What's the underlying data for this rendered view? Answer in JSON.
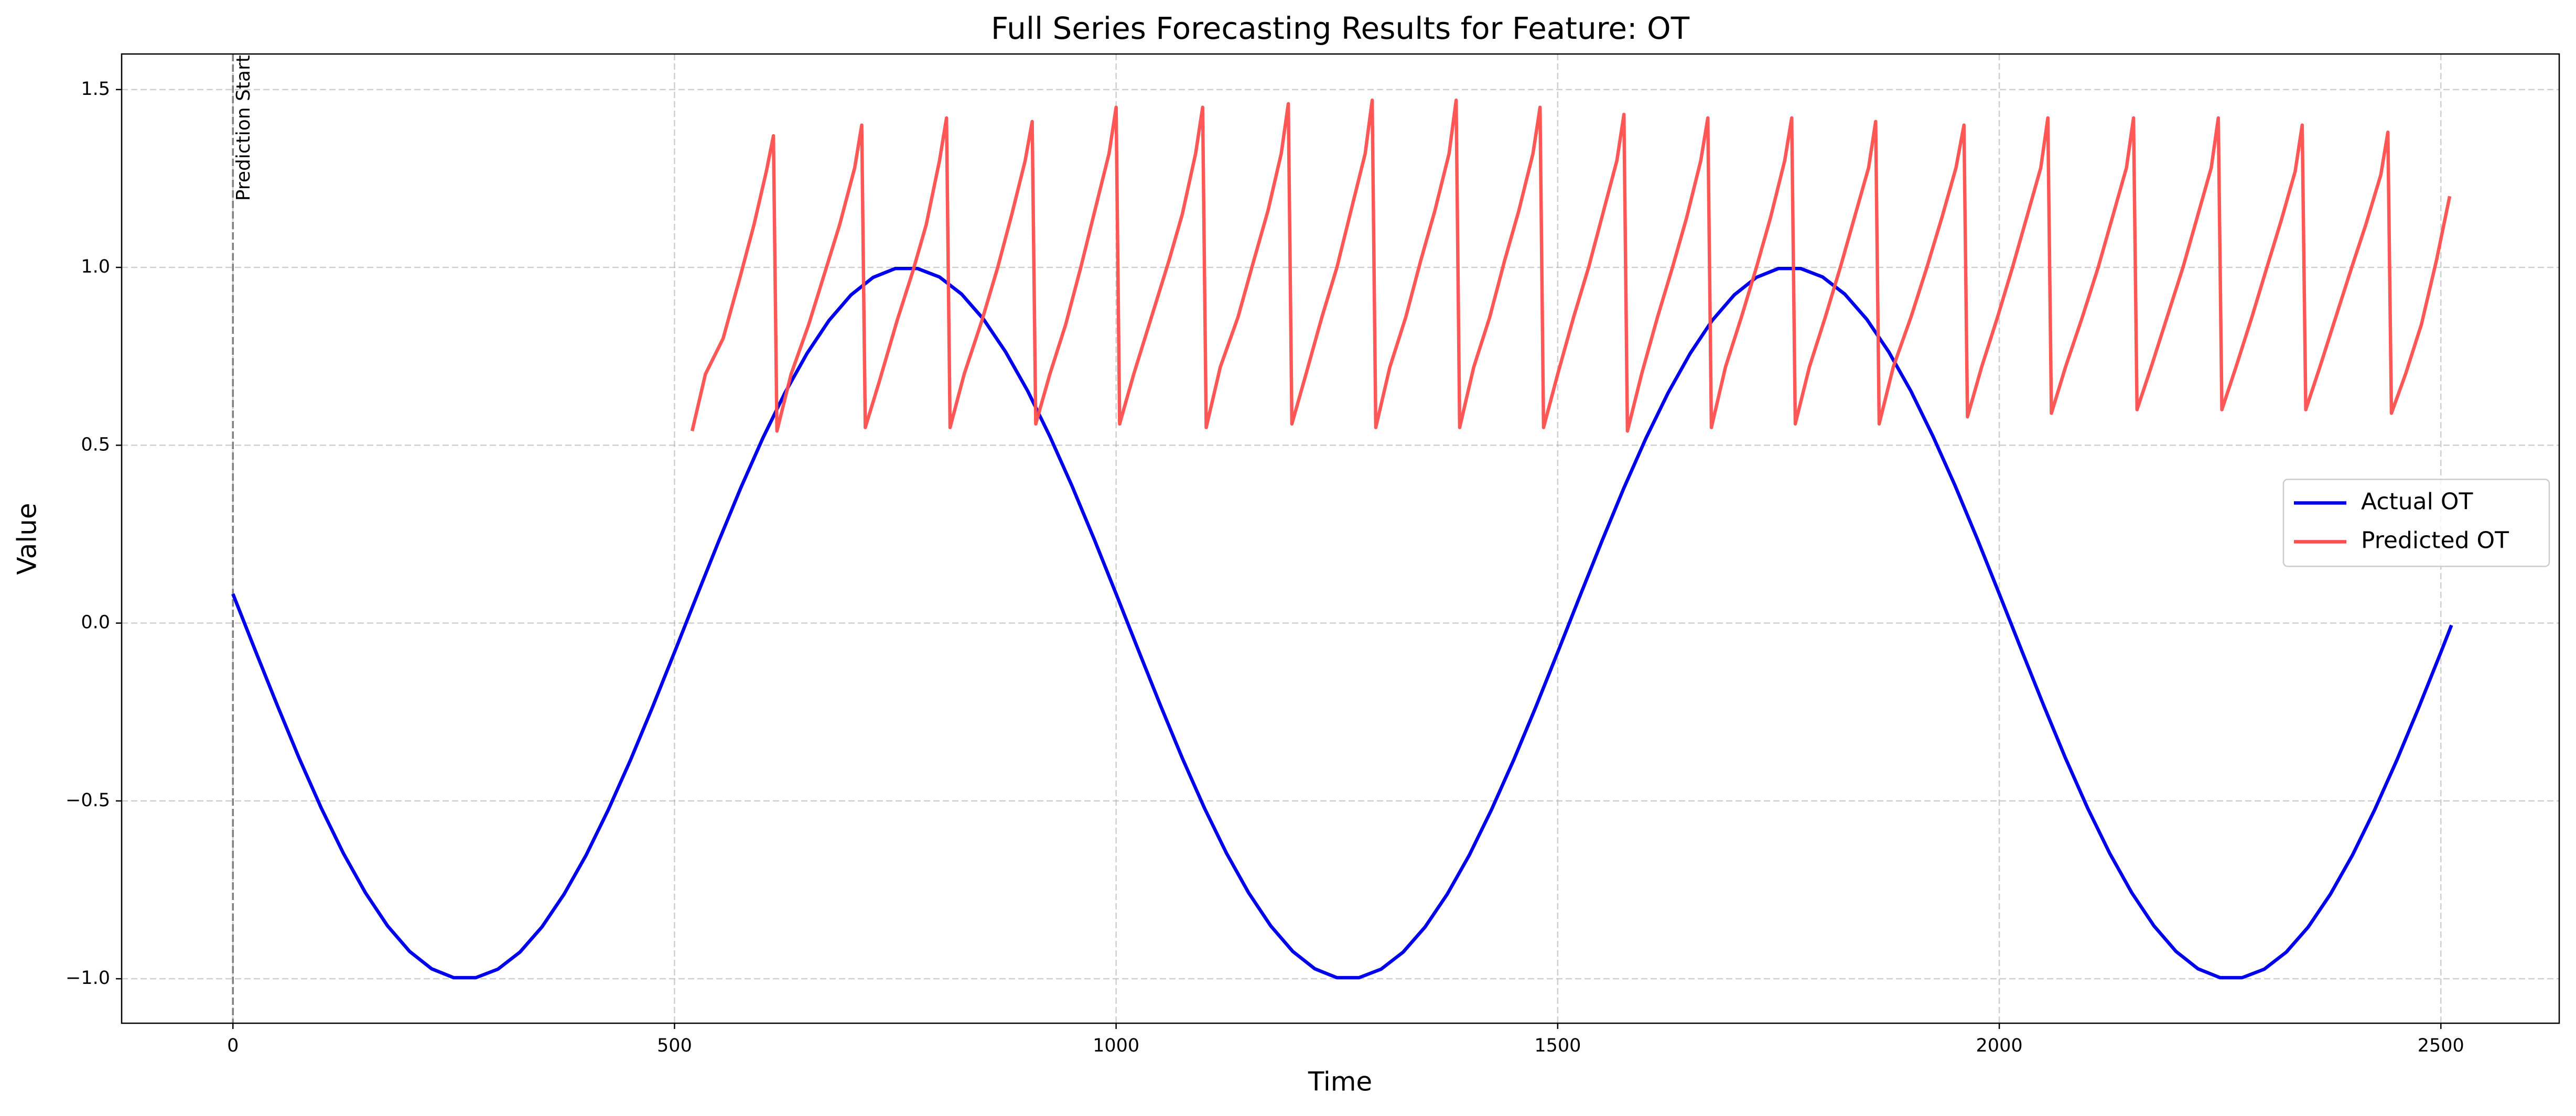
{
  "chart_data": {
    "type": "line",
    "title": "Full Series Forecasting Results for Feature: OT",
    "xlabel": "Time",
    "ylabel": "Value",
    "xlim": [
      -126,
      2634
    ],
    "ylim": [
      -1.125,
      1.6
    ],
    "xticks": [
      0,
      500,
      1000,
      1500,
      2000,
      2500
    ],
    "yticks": [
      {
        "value": -1.0,
        "label": "−1.0"
      },
      {
        "value": -0.5,
        "label": "−0.5"
      },
      {
        "value": 0.0,
        "label": "0.0"
      },
      {
        "value": 0.5,
        "label": "0.5"
      },
      {
        "value": 1.0,
        "label": "1.0"
      },
      {
        "value": 1.5,
        "label": "1.5"
      }
    ],
    "grid": true,
    "legend": "center right",
    "vline": {
      "x": 0,
      "label": "Prediction Start",
      "color": "#808080"
    },
    "series": [
      {
        "name": "Actual OT",
        "color": "#0000ee",
        "x": [
          0,
          25,
          50,
          75,
          100,
          125,
          150,
          175,
          200,
          225,
          250,
          275,
          300,
          325,
          350,
          375,
          400,
          425,
          450,
          475,
          500,
          525,
          550,
          575,
          600,
          625,
          650,
          675,
          700,
          725,
          750,
          775,
          800,
          825,
          850,
          875,
          900,
          925,
          950,
          975,
          1000,
          1025,
          1050,
          1075,
          1100,
          1125,
          1150,
          1175,
          1200,
          1225,
          1250,
          1275,
          1300,
          1325,
          1350,
          1375,
          1400,
          1425,
          1450,
          1475,
          1500,
          1525,
          1550,
          1575,
          1600,
          1625,
          1650,
          1675,
          1700,
          1725,
          1750,
          1775,
          1800,
          1825,
          1850,
          1875,
          1900,
          1925,
          1950,
          1975,
          2000,
          2025,
          2050,
          2075,
          2100,
          2125,
          2150,
          2175,
          2200,
          2225,
          2250,
          2275,
          2300,
          2325,
          2350,
          2375,
          2400,
          2425,
          2450,
          2475,
          2500,
          2512
        ],
        "values": [
          0.082,
          -0.075,
          -0.23,
          -0.38,
          -0.52,
          -0.647,
          -0.758,
          -0.851,
          -0.923,
          -0.972,
          -0.997,
          -0.997,
          -0.973,
          -0.925,
          -0.854,
          -0.762,
          -0.652,
          -0.525,
          -0.386,
          -0.237,
          -0.082,
          0.075,
          0.23,
          0.38,
          0.52,
          0.647,
          0.758,
          0.851,
          0.923,
          0.972,
          0.997,
          0.997,
          0.973,
          0.925,
          0.854,
          0.762,
          0.652,
          0.525,
          0.386,
          0.237,
          0.082,
          -0.075,
          -0.23,
          -0.38,
          -0.52,
          -0.647,
          -0.758,
          -0.851,
          -0.923,
          -0.972,
          -0.997,
          -0.997,
          -0.973,
          -0.925,
          -0.854,
          -0.762,
          -0.652,
          -0.525,
          -0.386,
          -0.237,
          -0.082,
          0.075,
          0.23,
          0.38,
          0.52,
          0.647,
          0.758,
          0.851,
          0.923,
          0.972,
          0.997,
          0.997,
          0.973,
          0.925,
          0.854,
          0.762,
          0.652,
          0.525,
          0.386,
          0.237,
          0.082,
          -0.075,
          -0.23,
          -0.38,
          -0.52,
          -0.647,
          -0.758,
          -0.851,
          -0.923,
          -0.972,
          -0.997,
          -0.997,
          -0.973,
          -0.925,
          -0.854,
          -0.762,
          -0.652,
          -0.525,
          -0.386,
          -0.237,
          -0.082,
          -0.006
        ]
      },
      {
        "name": "Predicted OT",
        "color": "#ff4d4d",
        "x": [
          520,
          535,
          555,
          575,
          590,
          604,
          612,
          616,
          632,
          652,
          672,
          687,
          704,
          712,
          716,
          732,
          752,
          770,
          785,
          800,
          808,
          812,
          828,
          848,
          866,
          882,
          897,
          905,
          909,
          925,
          943,
          960,
          975,
          992,
          1000,
          1004,
          1020,
          1040,
          1060,
          1075,
          1090,
          1098,
          1102,
          1118,
          1138,
          1156,
          1172,
          1187,
          1195,
          1199,
          1215,
          1233,
          1250,
          1266,
          1282,
          1290,
          1294,
          1310,
          1328,
          1345,
          1361,
          1377,
          1385,
          1389,
          1405,
          1423,
          1440,
          1456,
          1472,
          1480,
          1484,
          1500,
          1518,
          1535,
          1551,
          1567,
          1575,
          1579,
          1595,
          1613,
          1630,
          1646,
          1662,
          1670,
          1674,
          1690,
          1708,
          1725,
          1741,
          1757,
          1765,
          1769,
          1785,
          1803,
          1820,
          1836,
          1852,
          1860,
          1864,
          1880,
          1900,
          1918,
          1935,
          1951,
          1960,
          1964,
          1980,
          1998,
          2015,
          2031,
          2047,
          2055,
          2059,
          2075,
          2094,
          2112,
          2128,
          2144,
          2152,
          2156,
          2172,
          2190,
          2208,
          2224,
          2240,
          2248,
          2252,
          2268,
          2286,
          2303,
          2319,
          2335,
          2343,
          2347,
          2363,
          2381,
          2399,
          2415,
          2432,
          2440,
          2444,
          2460,
          2478,
          2495,
          2510
        ],
        "values": [
          0.54,
          0.7,
          0.8,
          0.98,
          1.12,
          1.27,
          1.37,
          0.54,
          0.7,
          0.84,
          1.0,
          1.12,
          1.28,
          1.4,
          0.55,
          0.68,
          0.85,
          0.99,
          1.12,
          1.3,
          1.42,
          0.55,
          0.7,
          0.85,
          1.0,
          1.15,
          1.3,
          1.41,
          0.56,
          0.7,
          0.84,
          1.0,
          1.15,
          1.32,
          1.45,
          0.56,
          0.7,
          0.86,
          1.02,
          1.15,
          1.32,
          1.45,
          0.55,
          0.72,
          0.86,
          1.02,
          1.16,
          1.32,
          1.46,
          0.56,
          0.7,
          0.86,
          1.0,
          1.16,
          1.32,
          1.47,
          0.55,
          0.72,
          0.86,
          1.02,
          1.16,
          1.32,
          1.47,
          0.55,
          0.72,
          0.86,
          1.02,
          1.16,
          1.32,
          1.45,
          0.55,
          0.7,
          0.86,
          1.0,
          1.15,
          1.3,
          1.43,
          0.54,
          0.7,
          0.86,
          1.0,
          1.14,
          1.3,
          1.42,
          0.55,
          0.72,
          0.86,
          1.0,
          1.14,
          1.3,
          1.42,
          0.56,
          0.72,
          0.86,
          1.0,
          1.14,
          1.28,
          1.41,
          0.56,
          0.72,
          0.86,
          1.0,
          1.14,
          1.28,
          1.4,
          0.58,
          0.72,
          0.86,
          1.0,
          1.14,
          1.28,
          1.42,
          0.59,
          0.72,
          0.86,
          1.0,
          1.14,
          1.28,
          1.42,
          0.6,
          0.72,
          0.86,
          1.0,
          1.14,
          1.28,
          1.42,
          0.6,
          0.72,
          0.86,
          1.0,
          1.13,
          1.27,
          1.4,
          0.6,
          0.72,
          0.86,
          1.0,
          1.12,
          1.26,
          1.38,
          0.59,
          0.7,
          0.84,
          1.02,
          1.2
        ]
      }
    ]
  }
}
